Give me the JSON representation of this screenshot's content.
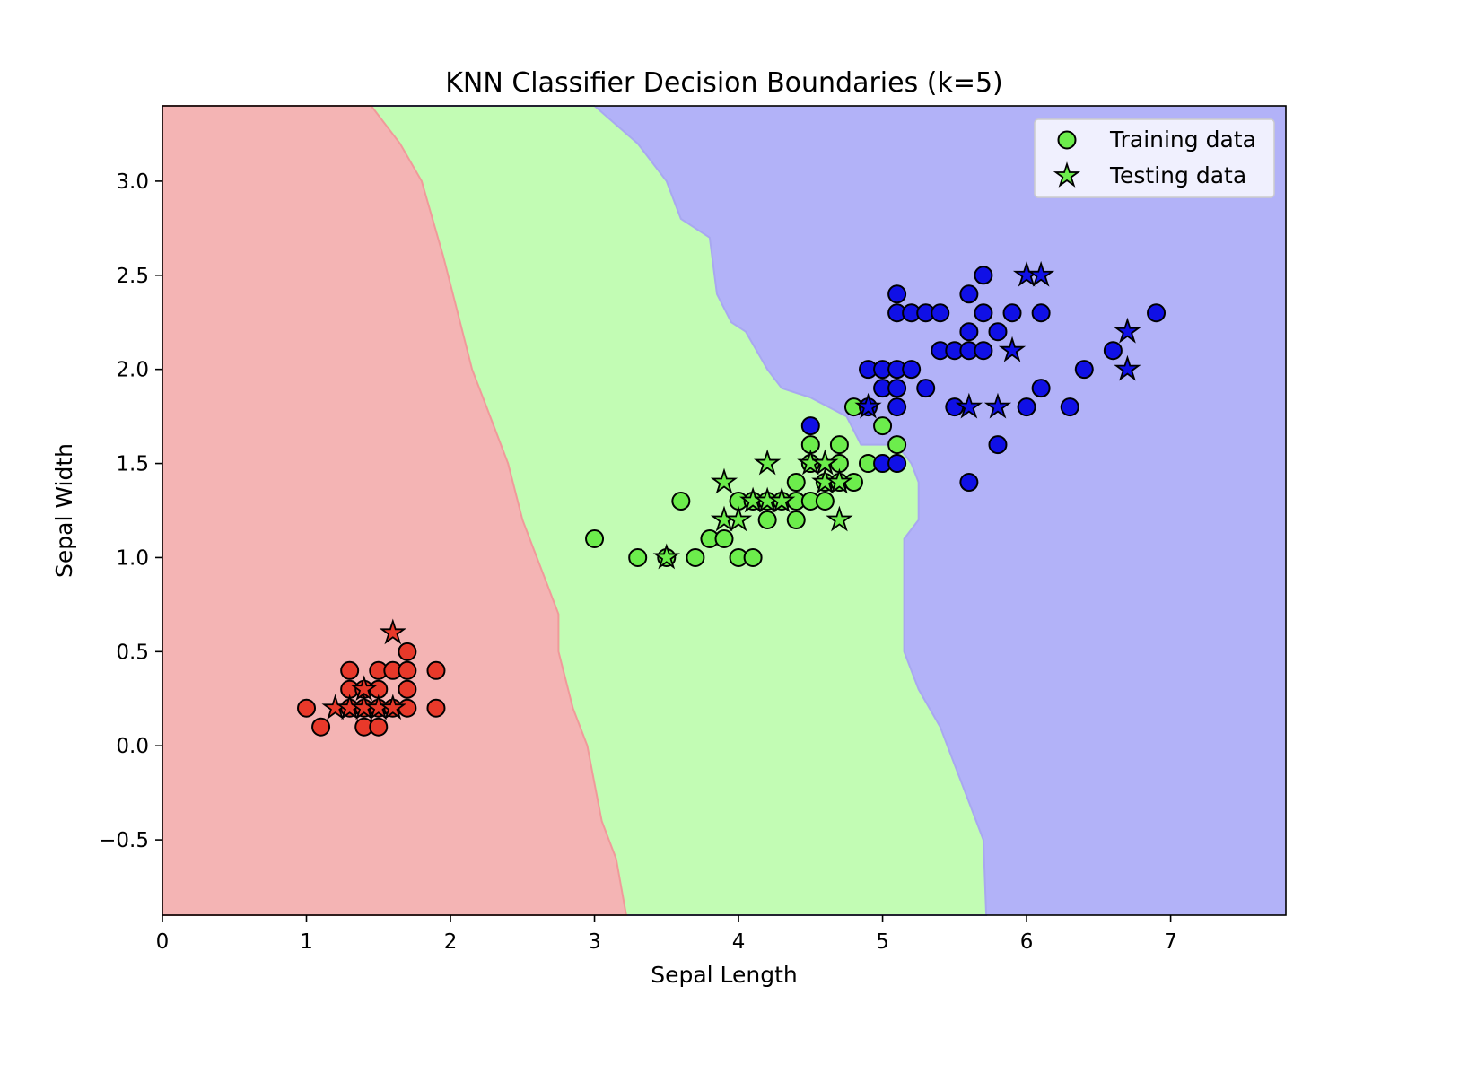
{
  "chart_data": {
    "type": "scatter",
    "title": "KNN Classifier Decision Boundaries (k=5)",
    "xlabel": "Sepal Length",
    "ylabel": "Sepal Width",
    "xlim": [
      0,
      7.8
    ],
    "ylim": [
      -0.9,
      3.4
    ],
    "xticks": [
      0,
      1,
      2,
      3,
      4,
      5,
      6,
      7
    ],
    "yticks": [
      -0.5,
      0.0,
      0.5,
      1.0,
      1.5,
      2.0,
      2.5,
      3.0
    ],
    "ytick_labels": [
      "−0.5",
      "0.0",
      "0.5",
      "1.0",
      "1.5",
      "2.0",
      "2.5",
      "3.0"
    ],
    "legend": {
      "position": "top-right",
      "entries": [
        {
          "label": "Training data",
          "marker": "circle"
        },
        {
          "label": "Testing data",
          "marker": "star"
        }
      ]
    },
    "colors": {
      "class_0_point": "#e8392a",
      "class_1_point": "#6ced4c",
      "class_2_point": "#1010e6",
      "class_0_region": "#f4b4b4",
      "class_1_region": "#c2fcb4",
      "class_2_region": "#b2b2f8",
      "legend_marker": "#6ced4c"
    },
    "regions": [
      {
        "class": 0,
        "boundary_to_next": [
          [
            1.45,
            3.4
          ],
          [
            1.65,
            3.2
          ],
          [
            1.8,
            3.0
          ],
          [
            1.95,
            2.6
          ],
          [
            2.05,
            2.3
          ],
          [
            2.15,
            2.0
          ],
          [
            2.25,
            1.8
          ],
          [
            2.4,
            1.5
          ],
          [
            2.5,
            1.2
          ],
          [
            2.6,
            1.0
          ],
          [
            2.75,
            0.7
          ],
          [
            2.75,
            0.5
          ],
          [
            2.85,
            0.2
          ],
          [
            2.95,
            0.0
          ],
          [
            3.0,
            -0.2
          ],
          [
            3.05,
            -0.4
          ],
          [
            3.15,
            -0.6
          ],
          [
            3.22,
            -0.9
          ]
        ]
      },
      {
        "class": 1,
        "boundary_to_next": [
          [
            3.0,
            3.4
          ],
          [
            3.3,
            3.2
          ],
          [
            3.5,
            3.0
          ],
          [
            3.6,
            2.8
          ],
          [
            3.8,
            2.7
          ],
          [
            3.85,
            2.4
          ],
          [
            3.95,
            2.25
          ],
          [
            4.05,
            2.2
          ],
          [
            4.2,
            2.0
          ],
          [
            4.3,
            1.9
          ],
          [
            4.5,
            1.85
          ],
          [
            4.75,
            1.75
          ],
          [
            4.85,
            1.6
          ],
          [
            5.1,
            1.6
          ],
          [
            5.2,
            1.5
          ],
          [
            5.25,
            1.4
          ],
          [
            5.25,
            1.2
          ],
          [
            5.15,
            1.1
          ],
          [
            5.15,
            0.5
          ],
          [
            5.25,
            0.3
          ],
          [
            5.4,
            0.1
          ],
          [
            5.5,
            -0.1
          ],
          [
            5.6,
            -0.3
          ],
          [
            5.7,
            -0.5
          ],
          [
            5.72,
            -0.9
          ]
        ]
      }
    ],
    "series": [
      {
        "name": "Training data",
        "marker": "circle",
        "points": [
          {
            "x": 1.0,
            "y": 0.2,
            "class": 0
          },
          {
            "x": 1.1,
            "y": 0.1,
            "class": 0
          },
          {
            "x": 1.3,
            "y": 0.4,
            "class": 0
          },
          {
            "x": 1.3,
            "y": 0.3,
            "class": 0
          },
          {
            "x": 1.3,
            "y": 0.2,
            "class": 0
          },
          {
            "x": 1.4,
            "y": 0.3,
            "class": 0
          },
          {
            "x": 1.4,
            "y": 0.2,
            "class": 0
          },
          {
            "x": 1.4,
            "y": 0.1,
            "class": 0
          },
          {
            "x": 1.5,
            "y": 0.4,
            "class": 0
          },
          {
            "x": 1.5,
            "y": 0.3,
            "class": 0
          },
          {
            "x": 1.5,
            "y": 0.2,
            "class": 0
          },
          {
            "x": 1.5,
            "y": 0.1,
            "class": 0
          },
          {
            "x": 1.6,
            "y": 0.4,
            "class": 0
          },
          {
            "x": 1.6,
            "y": 0.2,
            "class": 0
          },
          {
            "x": 1.7,
            "y": 0.5,
            "class": 0
          },
          {
            "x": 1.7,
            "y": 0.4,
            "class": 0
          },
          {
            "x": 1.7,
            "y": 0.3,
            "class": 0
          },
          {
            "x": 1.7,
            "y": 0.2,
            "class": 0
          },
          {
            "x": 1.9,
            "y": 0.4,
            "class": 0
          },
          {
            "x": 1.9,
            "y": 0.2,
            "class": 0
          },
          {
            "x": 3.0,
            "y": 1.1,
            "class": 1
          },
          {
            "x": 3.3,
            "y": 1.0,
            "class": 1
          },
          {
            "x": 3.5,
            "y": 1.0,
            "class": 1
          },
          {
            "x": 3.6,
            "y": 1.3,
            "class": 1
          },
          {
            "x": 3.7,
            "y": 1.0,
            "class": 1
          },
          {
            "x": 3.8,
            "y": 1.1,
            "class": 1
          },
          {
            "x": 3.9,
            "y": 1.1,
            "class": 1
          },
          {
            "x": 4.0,
            "y": 1.3,
            "class": 1
          },
          {
            "x": 4.0,
            "y": 1.0,
            "class": 1
          },
          {
            "x": 4.1,
            "y": 1.0,
            "class": 1
          },
          {
            "x": 4.1,
            "y": 1.3,
            "class": 1
          },
          {
            "x": 4.2,
            "y": 1.2,
            "class": 1
          },
          {
            "x": 4.2,
            "y": 1.3,
            "class": 1
          },
          {
            "x": 4.3,
            "y": 1.3,
            "class": 1
          },
          {
            "x": 4.4,
            "y": 1.4,
            "class": 1
          },
          {
            "x": 4.4,
            "y": 1.3,
            "class": 1
          },
          {
            "x": 4.4,
            "y": 1.2,
            "class": 1
          },
          {
            "x": 4.5,
            "y": 1.6,
            "class": 1
          },
          {
            "x": 4.5,
            "y": 1.5,
            "class": 1
          },
          {
            "x": 4.5,
            "y": 1.3,
            "class": 1
          },
          {
            "x": 4.6,
            "y": 1.3,
            "class": 1
          },
          {
            "x": 4.6,
            "y": 1.4,
            "class": 1
          },
          {
            "x": 4.7,
            "y": 1.6,
            "class": 1
          },
          {
            "x": 4.7,
            "y": 1.5,
            "class": 1
          },
          {
            "x": 4.7,
            "y": 1.4,
            "class": 1
          },
          {
            "x": 4.8,
            "y": 1.8,
            "class": 1
          },
          {
            "x": 4.8,
            "y": 1.4,
            "class": 1
          },
          {
            "x": 4.9,
            "y": 1.5,
            "class": 1
          },
          {
            "x": 5.0,
            "y": 1.7,
            "class": 1
          },
          {
            "x": 5.1,
            "y": 1.6,
            "class": 1
          },
          {
            "x": 4.5,
            "y": 1.7,
            "class": 2
          },
          {
            "x": 4.9,
            "y": 2.0,
            "class": 2
          },
          {
            "x": 4.9,
            "y": 1.8,
            "class": 2
          },
          {
            "x": 5.0,
            "y": 2.0,
            "class": 2
          },
          {
            "x": 5.0,
            "y": 1.9,
            "class": 2
          },
          {
            "x": 5.0,
            "y": 1.5,
            "class": 2
          },
          {
            "x": 5.1,
            "y": 2.4,
            "class": 2
          },
          {
            "x": 5.1,
            "y": 2.3,
            "class": 2
          },
          {
            "x": 5.1,
            "y": 2.0,
            "class": 2
          },
          {
            "x": 5.1,
            "y": 1.9,
            "class": 2
          },
          {
            "x": 5.1,
            "y": 1.8,
            "class": 2
          },
          {
            "x": 5.1,
            "y": 1.5,
            "class": 2
          },
          {
            "x": 5.2,
            "y": 2.3,
            "class": 2
          },
          {
            "x": 5.2,
            "y": 2.0,
            "class": 2
          },
          {
            "x": 5.3,
            "y": 2.3,
            "class": 2
          },
          {
            "x": 5.3,
            "y": 1.9,
            "class": 2
          },
          {
            "x": 5.4,
            "y": 2.3,
            "class": 2
          },
          {
            "x": 5.4,
            "y": 2.1,
            "class": 2
          },
          {
            "x": 5.5,
            "y": 2.1,
            "class": 2
          },
          {
            "x": 5.5,
            "y": 1.8,
            "class": 2
          },
          {
            "x": 5.6,
            "y": 2.4,
            "class": 2
          },
          {
            "x": 5.6,
            "y": 2.2,
            "class": 2
          },
          {
            "x": 5.6,
            "y": 2.1,
            "class": 2
          },
          {
            "x": 5.6,
            "y": 1.4,
            "class": 2
          },
          {
            "x": 5.7,
            "y": 2.5,
            "class": 2
          },
          {
            "x": 5.7,
            "y": 2.3,
            "class": 2
          },
          {
            "x": 5.7,
            "y": 2.1,
            "class": 2
          },
          {
            "x": 5.8,
            "y": 2.2,
            "class": 2
          },
          {
            "x": 5.8,
            "y": 1.6,
            "class": 2
          },
          {
            "x": 5.9,
            "y": 2.3,
            "class": 2
          },
          {
            "x": 6.0,
            "y": 1.8,
            "class": 2
          },
          {
            "x": 6.1,
            "y": 2.3,
            "class": 2
          },
          {
            "x": 6.1,
            "y": 1.9,
            "class": 2
          },
          {
            "x": 6.3,
            "y": 1.8,
            "class": 2
          },
          {
            "x": 6.4,
            "y": 2.0,
            "class": 2
          },
          {
            "x": 6.6,
            "y": 2.1,
            "class": 2
          },
          {
            "x": 6.9,
            "y": 2.3,
            "class": 2
          }
        ]
      },
      {
        "name": "Testing data",
        "marker": "star",
        "points": [
          {
            "x": 1.2,
            "y": 0.2,
            "class": 0
          },
          {
            "x": 1.3,
            "y": 0.2,
            "class": 0
          },
          {
            "x": 1.4,
            "y": 0.3,
            "class": 0
          },
          {
            "x": 1.4,
            "y": 0.2,
            "class": 0
          },
          {
            "x": 1.5,
            "y": 0.2,
            "class": 0
          },
          {
            "x": 1.6,
            "y": 0.2,
            "class": 0
          },
          {
            "x": 1.6,
            "y": 0.6,
            "class": 0
          },
          {
            "x": 3.5,
            "y": 1.0,
            "class": 1
          },
          {
            "x": 3.9,
            "y": 1.4,
            "class": 1
          },
          {
            "x": 3.9,
            "y": 1.2,
            "class": 1
          },
          {
            "x": 4.0,
            "y": 1.2,
            "class": 1
          },
          {
            "x": 4.1,
            "y": 1.3,
            "class": 1
          },
          {
            "x": 4.2,
            "y": 1.5,
            "class": 1
          },
          {
            "x": 4.2,
            "y": 1.3,
            "class": 1
          },
          {
            "x": 4.3,
            "y": 1.3,
            "class": 1
          },
          {
            "x": 4.5,
            "y": 1.5,
            "class": 1
          },
          {
            "x": 4.6,
            "y": 1.5,
            "class": 1
          },
          {
            "x": 4.6,
            "y": 1.4,
            "class": 1
          },
          {
            "x": 4.7,
            "y": 1.4,
            "class": 1
          },
          {
            "x": 4.7,
            "y": 1.2,
            "class": 1
          },
          {
            "x": 4.9,
            "y": 1.8,
            "class": 2
          },
          {
            "x": 5.6,
            "y": 1.8,
            "class": 2
          },
          {
            "x": 5.8,
            "y": 1.8,
            "class": 2
          },
          {
            "x": 5.9,
            "y": 2.1,
            "class": 2
          },
          {
            "x": 6.0,
            "y": 2.5,
            "class": 2
          },
          {
            "x": 6.1,
            "y": 2.5,
            "class": 2
          },
          {
            "x": 6.7,
            "y": 2.2,
            "class": 2
          },
          {
            "x": 6.7,
            "y": 2.0,
            "class": 2
          }
        ]
      }
    ]
  }
}
